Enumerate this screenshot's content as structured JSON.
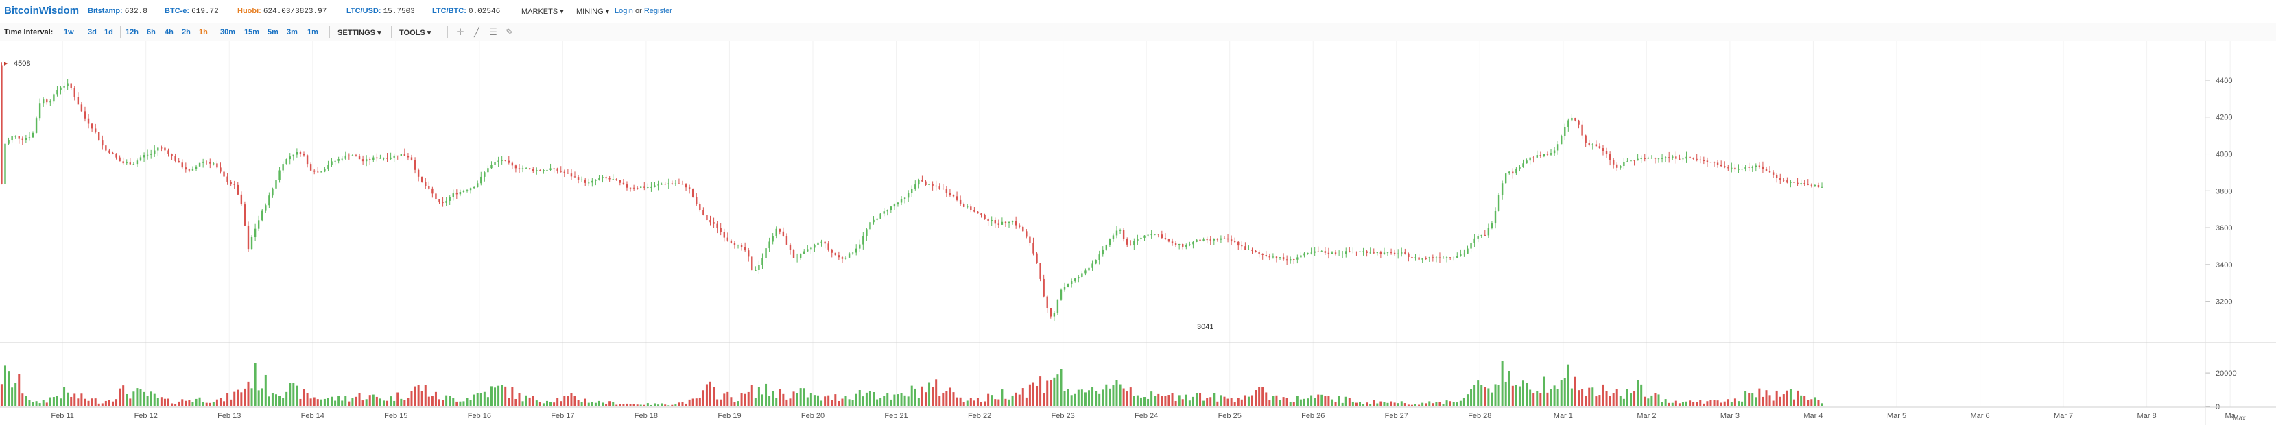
{
  "header": {
    "brand": "BitcoinWisdom",
    "tickers": [
      {
        "name": "Bitstamp:",
        "value": "632.8",
        "highlight": false
      },
      {
        "name": "BTC-e:",
        "value": "619.72",
        "highlight": false
      },
      {
        "name": "Huobi:",
        "value": "624.03/3823.97",
        "highlight": true
      },
      {
        "name": "LTC/USD:",
        "value": "15.7503",
        "highlight": false
      },
      {
        "name": "LTC/BTC:",
        "value": "0.02546",
        "highlight": false
      }
    ],
    "menus": [
      "MARKETS",
      "MINING"
    ],
    "login": "Login",
    "or": "or",
    "register": "Register"
  },
  "toolbar": {
    "time_interval_label": "Time Interval:",
    "intervals": [
      "1w",
      "3d",
      "1d",
      "12h",
      "6h",
      "4h",
      "2h",
      "1h",
      "30m",
      "15m",
      "5m",
      "3m",
      "1m"
    ],
    "active_interval": "1h",
    "settings": "SETTINGS",
    "tools": "TOOLS",
    "tool_icons": [
      "crosshair-icon",
      "line-draw-icon",
      "fibonacci-icon",
      "eraser-icon"
    ]
  },
  "colors": {
    "up": "#5cb85c",
    "down": "#d9534f",
    "accent": "#1a73c4",
    "active_interval": "#e67e22"
  },
  "chart_data": {
    "type": "candlestick",
    "price_axis": {
      "ticks": [
        "4400",
        "4200",
        "4000",
        "3800",
        "3600",
        "3400",
        "3200"
      ],
      "ylim": [
        3050,
        4530
      ]
    },
    "volume_axis": {
      "ticks": [
        "20000",
        "0"
      ],
      "ylim": [
        0,
        36000
      ]
    },
    "x_ticks": [
      "Feb 11",
      "Feb 12",
      "Feb 13",
      "Feb 14",
      "Feb 15",
      "Feb 16",
      "Feb 17",
      "Feb 18",
      "Feb 19",
      "Feb 20",
      "Feb 21",
      "Feb 22",
      "Feb 23",
      "Feb 24",
      "Feb 25",
      "Feb 26",
      "Feb 27",
      "Feb 28",
      "Mar 1",
      "Mar 2",
      "Mar 3",
      "Mar 4",
      "Mar 5",
      "Mar 6",
      "Mar 7",
      "Mar 8",
      "Ma"
    ],
    "x_range_days": [
      10.25,
      37.55
    ],
    "annotations": {
      "high": "4508",
      "low": "3041"
    },
    "scroll_hint": "Max",
    "price_anchors": [
      [
        10.27,
        4480
      ],
      [
        10.3,
        3750
      ],
      [
        10.34,
        4050
      ],
      [
        10.45,
        4100
      ],
      [
        10.55,
        4080
      ],
      [
        10.68,
        4100
      ],
      [
        10.78,
        4300
      ],
      [
        10.88,
        4280
      ],
      [
        11.0,
        4360
      ],
      [
        11.12,
        4380
      ],
      [
        11.2,
        4300
      ],
      [
        11.3,
        4200
      ],
      [
        11.42,
        4130
      ],
      [
        11.55,
        4020
      ],
      [
        11.62,
        4010
      ],
      [
        11.75,
        3950
      ],
      [
        11.9,
        3950
      ],
      [
        12.0,
        3990
      ],
      [
        12.1,
        4000
      ],
      [
        12.2,
        4040
      ],
      [
        12.3,
        4010
      ],
      [
        12.45,
        3940
      ],
      [
        12.58,
        3900
      ],
      [
        12.7,
        3960
      ],
      [
        12.85,
        3950
      ],
      [
        13.0,
        3860
      ],
      [
        13.12,
        3820
      ],
      [
        13.2,
        3700
      ],
      [
        13.27,
        3480
      ],
      [
        13.32,
        3560
      ],
      [
        13.45,
        3700
      ],
      [
        13.55,
        3800
      ],
      [
        13.68,
        3950
      ],
      [
        13.8,
        4000
      ],
      [
        13.92,
        4010
      ],
      [
        14.0,
        3920
      ],
      [
        14.12,
        3900
      ],
      [
        14.25,
        3950
      ],
      [
        14.35,
        3970
      ],
      [
        14.5,
        4000
      ],
      [
        14.65,
        3960
      ],
      [
        14.8,
        3980
      ],
      [
        14.95,
        3980
      ],
      [
        15.1,
        4000
      ],
      [
        15.22,
        3980
      ],
      [
        15.32,
        3860
      ],
      [
        15.45,
        3800
      ],
      [
        15.58,
        3720
      ],
      [
        15.72,
        3780
      ],
      [
        15.85,
        3800
      ],
      [
        16.0,
        3830
      ],
      [
        16.15,
        3930
      ],
      [
        16.3,
        3970
      ],
      [
        16.45,
        3930
      ],
      [
        16.6,
        3920
      ],
      [
        16.75,
        3910
      ],
      [
        16.9,
        3920
      ],
      [
        17.05,
        3900
      ],
      [
        17.2,
        3870
      ],
      [
        17.35,
        3840
      ],
      [
        17.5,
        3870
      ],
      [
        17.65,
        3860
      ],
      [
        17.8,
        3820
      ],
      [
        17.95,
        3820
      ],
      [
        18.1,
        3820
      ],
      [
        18.25,
        3840
      ],
      [
        18.4,
        3840
      ],
      [
        18.55,
        3820
      ],
      [
        18.65,
        3720
      ],
      [
        18.75,
        3650
      ],
      [
        18.9,
        3600
      ],
      [
        19.0,
        3540
      ],
      [
        19.15,
        3500
      ],
      [
        19.25,
        3470
      ],
      [
        19.32,
        3350
      ],
      [
        19.42,
        3420
      ],
      [
        19.52,
        3530
      ],
      [
        19.62,
        3600
      ],
      [
        19.72,
        3520
      ],
      [
        19.82,
        3430
      ],
      [
        19.92,
        3460
      ],
      [
        20.05,
        3500
      ],
      [
        20.15,
        3530
      ],
      [
        20.25,
        3470
      ],
      [
        20.38,
        3430
      ],
      [
        20.5,
        3460
      ],
      [
        20.6,
        3510
      ],
      [
        20.72,
        3620
      ],
      [
        20.85,
        3670
      ],
      [
        21.0,
        3720
      ],
      [
        21.15,
        3760
      ],
      [
        21.3,
        3860
      ],
      [
        21.42,
        3830
      ],
      [
        21.55,
        3820
      ],
      [
        21.7,
        3780
      ],
      [
        21.85,
        3720
      ],
      [
        22.0,
        3680
      ],
      [
        22.15,
        3640
      ],
      [
        22.28,
        3620
      ],
      [
        22.42,
        3640
      ],
      [
        22.55,
        3590
      ],
      [
        22.65,
        3510
      ],
      [
        22.75,
        3380
      ],
      [
        22.82,
        3200
      ],
      [
        22.88,
        3120
      ],
      [
        22.92,
        3100
      ],
      [
        23.0,
        3260
      ],
      [
        23.12,
        3300
      ],
      [
        23.25,
        3340
      ],
      [
        23.38,
        3400
      ],
      [
        23.5,
        3460
      ],
      [
        23.62,
        3550
      ],
      [
        23.72,
        3590
      ],
      [
        23.82,
        3500
      ],
      [
        23.95,
        3540
      ],
      [
        24.08,
        3570
      ],
      [
        24.2,
        3560
      ],
      [
        24.35,
        3510
      ],
      [
        24.5,
        3500
      ],
      [
        24.65,
        3530
      ],
      [
        24.8,
        3530
      ],
      [
        24.95,
        3540
      ],
      [
        25.1,
        3520
      ],
      [
        25.25,
        3480
      ],
      [
        25.45,
        3450
      ],
      [
        25.6,
        3440
      ],
      [
        25.75,
        3420
      ],
      [
        25.9,
        3450
      ],
      [
        26.1,
        3470
      ],
      [
        26.3,
        3460
      ],
      [
        26.5,
        3470
      ],
      [
        26.7,
        3470
      ],
      [
        26.9,
        3460
      ],
      [
        27.1,
        3460
      ],
      [
        27.3,
        3430
      ],
      [
        27.5,
        3440
      ],
      [
        27.7,
        3440
      ],
      [
        27.85,
        3460
      ],
      [
        28.0,
        3550
      ],
      [
        28.1,
        3560
      ],
      [
        28.2,
        3640
      ],
      [
        28.28,
        3800
      ],
      [
        28.35,
        3900
      ],
      [
        28.45,
        3900
      ],
      [
        28.55,
        3950
      ],
      [
        28.65,
        3980
      ],
      [
        28.75,
        3990
      ],
      [
        28.9,
        4000
      ],
      [
        29.0,
        4070
      ],
      [
        29.12,
        4200
      ],
      [
        29.22,
        4170
      ],
      [
        29.3,
        4060
      ],
      [
        29.42,
        4050
      ],
      [
        29.55,
        4000
      ],
      [
        29.68,
        3920
      ],
      [
        29.8,
        3960
      ],
      [
        29.95,
        3970
      ],
      [
        30.1,
        3980
      ],
      [
        30.25,
        3980
      ],
      [
        30.4,
        3980
      ],
      [
        30.55,
        3980
      ],
      [
        30.7,
        3960
      ],
      [
        30.82,
        3960
      ],
      [
        30.95,
        3930
      ],
      [
        31.1,
        3920
      ],
      [
        31.25,
        3930
      ],
      [
        31.4,
        3930
      ],
      [
        31.55,
        3890
      ],
      [
        31.7,
        3850
      ],
      [
        31.85,
        3840
      ],
      [
        32.0,
        3830
      ],
      [
        32.12,
        3823.97
      ]
    ],
    "volume_anchors": [
      [
        10.3,
        20000
      ],
      [
        10.5,
        14000
      ],
      [
        10.65,
        2000
      ],
      [
        10.8,
        4000
      ],
      [
        11.0,
        9000
      ],
      [
        11.2,
        6000
      ],
      [
        11.5,
        3000
      ],
      [
        11.7,
        10000
      ],
      [
        12.0,
        8000
      ],
      [
        12.3,
        3000
      ],
      [
        12.6,
        5000
      ],
      [
        12.9,
        4000
      ],
      [
        13.1,
        9000
      ],
      [
        13.2,
        14000
      ],
      [
        13.3,
        21000
      ],
      [
        13.5,
        11000
      ],
      [
        13.7,
        12000
      ],
      [
        14.0,
        6000
      ],
      [
        14.3,
        5000
      ],
      [
        14.6,
        7000
      ],
      [
        14.9,
        5000
      ],
      [
        15.1,
        8000
      ],
      [
        15.3,
        13000
      ],
      [
        15.5,
        6000
      ],
      [
        15.8,
        5000
      ],
      [
        16.1,
        10000
      ],
      [
        16.3,
        12000
      ],
      [
        16.5,
        6000
      ],
      [
        16.8,
        4000
      ],
      [
        17.1,
        6000
      ],
      [
        17.4,
        3000
      ],
      [
        17.7,
        2000
      ],
      [
        18.0,
        1500
      ],
      [
        18.3,
        1500
      ],
      [
        18.6,
        4000
      ],
      [
        18.75,
        12000
      ],
      [
        18.9,
        8000
      ],
      [
        19.1,
        5000
      ],
      [
        19.3,
        11000
      ],
      [
        19.5,
        10000
      ],
      [
        19.7,
        8000
      ],
      [
        19.9,
        9000
      ],
      [
        20.1,
        5000
      ],
      [
        20.4,
        7000
      ],
      [
        20.7,
        10000
      ],
      [
        20.95,
        5000
      ],
      [
        21.2,
        10000
      ],
      [
        21.4,
        13000
      ],
      [
        21.6,
        11000
      ],
      [
        21.8,
        6000
      ],
      [
        22.0,
        4000
      ],
      [
        22.3,
        9000
      ],
      [
        22.5,
        10000
      ],
      [
        22.75,
        16000
      ],
      [
        22.9,
        24000
      ],
      [
        23.05,
        12000
      ],
      [
        23.2,
        7000
      ],
      [
        23.45,
        12000
      ],
      [
        23.6,
        17000
      ],
      [
        23.8,
        12000
      ],
      [
        24.0,
        7000
      ],
      [
        24.2,
        6000
      ],
      [
        24.5,
        8000
      ],
      [
        24.8,
        6000
      ],
      [
        25.0,
        5000
      ],
      [
        25.2,
        8000
      ],
      [
        25.4,
        9000
      ],
      [
        25.6,
        6000
      ],
      [
        25.8,
        5000
      ],
      [
        26.0,
        6000
      ],
      [
        26.3,
        5000
      ],
      [
        26.6,
        3000
      ],
      [
        26.9,
        3000
      ],
      [
        27.2,
        2000
      ],
      [
        27.5,
        2500
      ],
      [
        27.8,
        5000
      ],
      [
        28.0,
        14000
      ],
      [
        28.15,
        12000
      ],
      [
        28.28,
        28000
      ],
      [
        28.4,
        17000
      ],
      [
        28.55,
        11000
      ],
      [
        28.7,
        15000
      ],
      [
        28.85,
        18000
      ],
      [
        29.0,
        23000
      ],
      [
        29.15,
        15000
      ],
      [
        29.3,
        9000
      ],
      [
        29.5,
        10000
      ],
      [
        29.7,
        8000
      ],
      [
        29.9,
        12000
      ],
      [
        30.1,
        6000
      ],
      [
        30.3,
        4000
      ],
      [
        30.5,
        3000
      ],
      [
        30.7,
        3500
      ],
      [
        30.9,
        3000
      ],
      [
        31.1,
        5000
      ],
      [
        31.3,
        9000
      ],
      [
        31.5,
        7000
      ],
      [
        31.7,
        10000
      ],
      [
        31.9,
        6000
      ],
      [
        32.12,
        3000
      ]
    ]
  }
}
